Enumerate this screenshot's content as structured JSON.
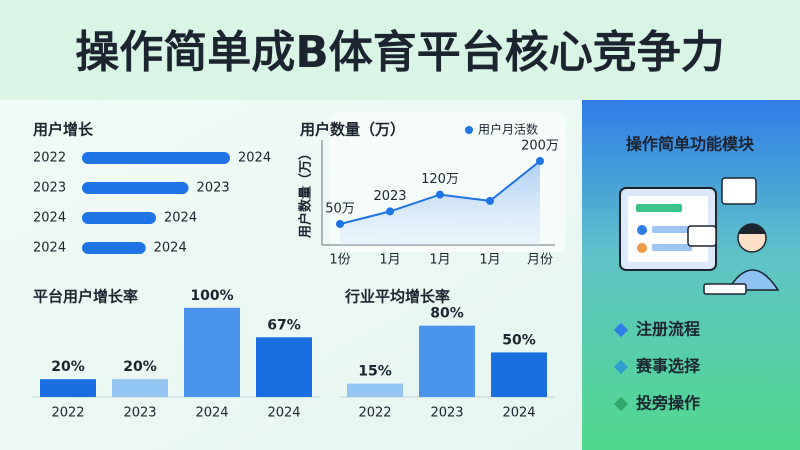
{
  "title": "操作简单成B体育平台核心竞争力",
  "chart_data": [
    {
      "type": "hbar",
      "title": "用户增长",
      "categories": [
        "2022",
        "2023",
        "2024",
        "2024"
      ],
      "values": [
        100,
        72,
        50,
        43
      ],
      "annotations": [
        "2024",
        "2023",
        "2024",
        "2024"
      ],
      "xlim": [
        0,
        100
      ],
      "color": "#1f74e6"
    },
    {
      "type": "line",
      "title": "用户数量（万）",
      "ylabel": "用户数量（万）",
      "legend": "用户月活数",
      "categories": [
        "1份",
        "1月",
        "1月",
        "1月",
        "月份"
      ],
      "values": [
        50,
        80,
        120,
        105,
        200
      ],
      "value_labels": [
        "50万",
        null,
        "120万",
        null,
        "200万"
      ],
      "annotation": "2023",
      "ylim": [
        0,
        250
      ],
      "color": "#1f74e6"
    },
    {
      "type": "bar",
      "title": "平台用户增长率",
      "categories": [
        "2022",
        "2023",
        "2024",
        "2024"
      ],
      "values": [
        20,
        20,
        100,
        67
      ],
      "value_labels": [
        "20%",
        "20%",
        "100%",
        "67%"
      ],
      "colors": [
        "#1a6fe0",
        "#93c6f5",
        "#4a94ee",
        "#1a6fe0"
      ],
      "ylim": [
        0,
        120
      ]
    },
    {
      "type": "bar",
      "title": "行业平均增长率",
      "categories": [
        "2022",
        "2023",
        "2024"
      ],
      "values": [
        15,
        80,
        50
      ],
      "value_labels": [
        "15%",
        "80%",
        "50%"
      ],
      "colors": [
        "#93c6f5",
        "#4a94ee",
        "#1a6fe0"
      ],
      "ylim": [
        0,
        120
      ]
    }
  ],
  "panel": {
    "title": "操作简单功能模块",
    "items": [
      "注册流程",
      "赛事选择",
      "投旁操作"
    ]
  }
}
